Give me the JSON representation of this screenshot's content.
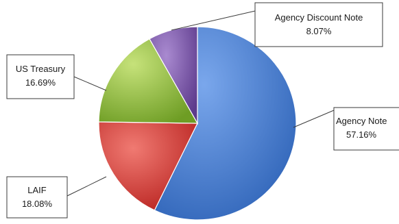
{
  "chart_data": {
    "type": "pie",
    "slices": [
      {
        "label": "Agency Note",
        "value": 57.16,
        "display": "57.16%",
        "color": "#4a7fd3"
      },
      {
        "label": "LAIF",
        "value": 18.08,
        "display": "18.08%",
        "color": "#d33a36"
      },
      {
        "label": "US Treasury",
        "value": 16.69,
        "display": "16.69%",
        "color": "#94bf3d"
      },
      {
        "label": "Agency Discount Note",
        "value": 8.07,
        "display": "8.07%",
        "color": "#7d55ab"
      }
    ]
  }
}
